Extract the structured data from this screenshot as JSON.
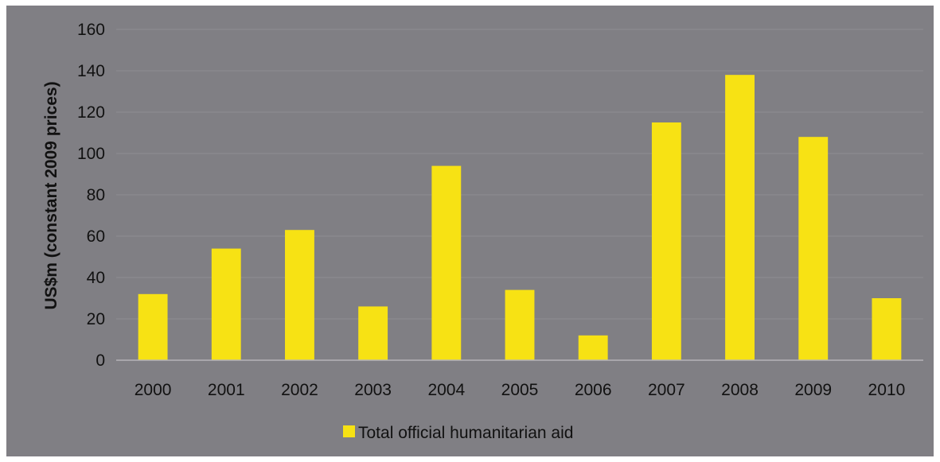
{
  "chart_data": {
    "type": "bar",
    "categories": [
      "2000",
      "2001",
      "2002",
      "2003",
      "2004",
      "2005",
      "2006",
      "2007",
      "2008",
      "2009",
      "2010"
    ],
    "series": [
      {
        "name": "Total official humanitarian aid",
        "values": [
          32,
          54,
          63,
          26,
          94,
          34,
          12,
          115,
          138,
          108,
          30
        ]
      }
    ],
    "title": "",
    "xlabel": "",
    "ylabel": "US$m (constant 2009 prices)",
    "ylim": [
      0,
      160
    ],
    "yticks": [
      "0",
      "20",
      "40",
      "60",
      "80",
      "100",
      "120",
      "140",
      "160"
    ],
    "grid": true,
    "legend_position": "bottom",
    "colors": {
      "background": "#807f84",
      "bar": "#f7e214",
      "grid": "#8e8d92",
      "axis": "#b5b4b8",
      "text": "#111111"
    }
  }
}
